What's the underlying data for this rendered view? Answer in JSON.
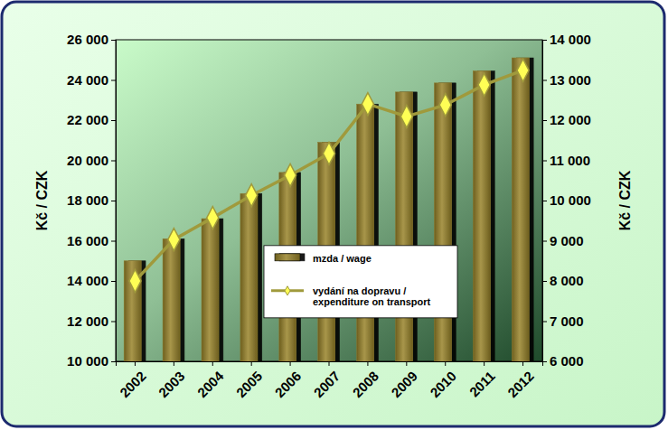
{
  "chart_data": {
    "type": "bar",
    "categories": [
      "2002",
      "2003",
      "2004",
      "2005",
      "2006",
      "2007",
      "2008",
      "2009",
      "2010",
      "2011",
      "2012"
    ],
    "series": [
      {
        "name": "mzda / wage",
        "type": "bar",
        "axis": "y",
        "color": "#8c7b2e",
        "values": [
          15000,
          16100,
          17100,
          18350,
          19400,
          20900,
          22800,
          23400,
          23850,
          24450,
          25100
        ]
      },
      {
        "name": "vydání na dopravu / expenditure on transport",
        "type": "line",
        "axis": "y2",
        "color": "#a09a3c",
        "marker": "diamond",
        "line_style": "solid",
        "values": [
          8000,
          9030,
          9570,
          10130,
          10630,
          11170,
          12400,
          12090,
          12380,
          12880,
          13240
        ]
      }
    ],
    "y_label": "Kč / CZK",
    "y2_label": "Kč / CZK",
    "ylim": [
      10000,
      26000
    ],
    "yticks": [
      {
        "value": 10000,
        "label": "10 000"
      },
      {
        "value": 12000,
        "label": "12 000"
      },
      {
        "value": 14000,
        "label": "14 000"
      },
      {
        "value": 16000,
        "label": "16 000"
      },
      {
        "value": 18000,
        "label": "18 000"
      },
      {
        "value": 20000,
        "label": "20 000"
      },
      {
        "value": 22000,
        "label": "22 000"
      },
      {
        "value": 24000,
        "label": "24 000"
      },
      {
        "value": 26000,
        "label": "26 000"
      }
    ],
    "y2lim": [
      6000,
      14000
    ],
    "y2ticks": [
      {
        "value": 6000,
        "label": "6 000"
      },
      {
        "value": 7000,
        "label": "7 000"
      },
      {
        "value": 8000,
        "label": "8 000"
      },
      {
        "value": 9000,
        "label": "9 000"
      },
      {
        "value": 10000,
        "label": "10 000"
      },
      {
        "value": 11000,
        "label": "11 000"
      },
      {
        "value": 12000,
        "label": "12 000"
      },
      {
        "value": 13000,
        "label": "13 000"
      },
      {
        "value": 14000,
        "label": "14 000"
      }
    ],
    "grid": false,
    "legend": "center"
  }
}
